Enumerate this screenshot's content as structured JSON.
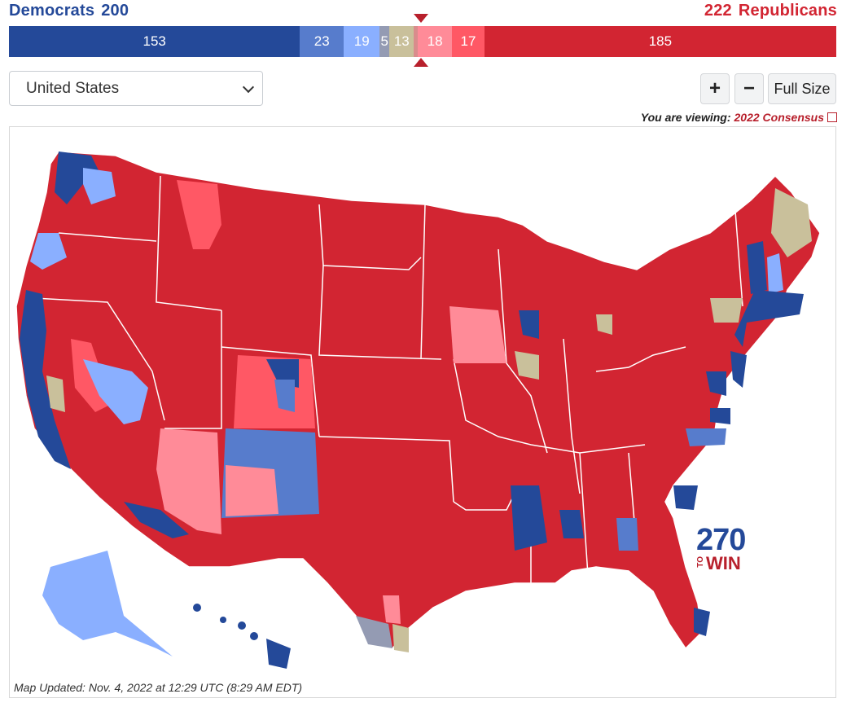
{
  "header": {
    "dem_label": "Democrats",
    "dem_total": "200",
    "rep_total": "222",
    "rep_label": "Republicans"
  },
  "bar_segments": [
    {
      "label": "153",
      "value": 153,
      "color": "#244999"
    },
    {
      "label": "23",
      "value": 23,
      "color": "#577ccc"
    },
    {
      "label": "19",
      "value": 19,
      "color": "#8aafff"
    },
    {
      "label": "5",
      "value": 5,
      "color": "#949bb3"
    },
    {
      "label": "13",
      "value": 13,
      "color": "#c9c09b"
    },
    {
      "label": "",
      "value": 2,
      "color": "#d98c8c"
    },
    {
      "label": "18",
      "value": 18,
      "color": "#ff8b98"
    },
    {
      "label": "17",
      "value": 17,
      "color": "#ff5865"
    },
    {
      "label": "185",
      "value": 185,
      "color": "#d22532"
    }
  ],
  "select": {
    "value": "United States"
  },
  "controls": {
    "zoom_in": "+",
    "zoom_out": "−",
    "full_size": "Full Size"
  },
  "viewing": {
    "prefix": "You are viewing:",
    "link": "2022 Consensus"
  },
  "logo": {
    "number": "270",
    "to": "TO",
    "win": "WIN"
  },
  "footer": {
    "updated": "Map Updated: Nov. 4, 2022 at 12:29 UTC (8:29 AM EDT)"
  },
  "colors": {
    "safe_dem": "#244999",
    "likely_dem": "#577ccc",
    "lean_dem": "#8aafff",
    "tilt": "#949bb3",
    "tossup": "#c9c09b",
    "lean_rep": "#ff8b98",
    "likely_rep": "#ff5865",
    "safe_rep": "#d22532"
  }
}
